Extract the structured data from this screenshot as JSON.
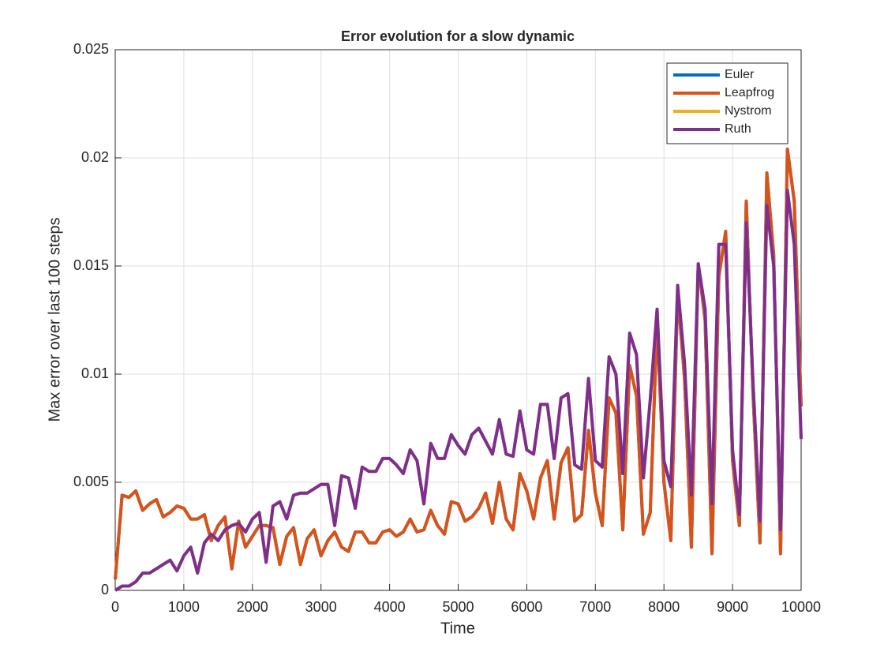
{
  "chart_data": {
    "type": "line",
    "title": "Error evolution for a slow dynamic",
    "xlabel": "Time",
    "ylabel": "Max error over last 100 steps",
    "x": [
      0,
      100,
      200,
      300,
      400,
      500,
      600,
      700,
      800,
      900,
      1000,
      1100,
      1200,
      1300,
      1400,
      1500,
      1600,
      1700,
      1800,
      1900,
      2000,
      2100,
      2200,
      2300,
      2400,
      2500,
      2600,
      2700,
      2800,
      2900,
      3000,
      3100,
      3200,
      3300,
      3400,
      3500,
      3600,
      3700,
      3800,
      3900,
      4000,
      4100,
      4200,
      4300,
      4400,
      4500,
      4600,
      4700,
      4800,
      4900,
      5000,
      5100,
      5200,
      5300,
      5400,
      5500,
      5600,
      5700,
      5800,
      5900,
      6000,
      6100,
      6200,
      6300,
      6400,
      6500,
      6600,
      6700,
      6800,
      6900,
      7000,
      7100,
      7200,
      7300,
      7400,
      7500,
      7600,
      7700,
      7800,
      7900,
      8000,
      8100,
      8200,
      8300,
      8400,
      8500,
      8600,
      8700,
      8800,
      8900,
      9000,
      9100,
      9200,
      9300,
      9400,
      9500,
      9600,
      9700,
      9800,
      9900,
      10000
    ],
    "series": [
      {
        "name": "Euler",
        "color": "#0072BD",
        "values": [
          0.0005,
          0.0044,
          0.0043,
          0.0046,
          0.0037,
          0.004,
          0.0042,
          0.0034,
          0.0036,
          0.0039,
          0.0038,
          0.0033,
          0.0033,
          0.0035,
          0.0023,
          0.003,
          0.0034,
          0.001,
          0.0032,
          0.002,
          0.0025,
          0.003,
          0.003,
          0.0029,
          0.0012,
          0.0025,
          0.0029,
          0.0012,
          0.0024,
          0.0028,
          0.0016,
          0.0023,
          0.0027,
          0.002,
          0.0018,
          0.0027,
          0.0027,
          0.0022,
          0.0022,
          0.0027,
          0.0028,
          0.0025,
          0.0027,
          0.0033,
          0.0027,
          0.0028,
          0.0037,
          0.003,
          0.0026,
          0.0041,
          0.004,
          0.0032,
          0.0034,
          0.0038,
          0.0045,
          0.0031,
          0.005,
          0.0033,
          0.0028,
          0.0054,
          0.0046,
          0.0033,
          0.0052,
          0.006,
          0.0033,
          0.0059,
          0.0066,
          0.0032,
          0.0035,
          0.0074,
          0.0045,
          0.003,
          0.0089,
          0.0082,
          0.0028,
          0.0104,
          0.009,
          0.0026,
          0.0036,
          0.0124,
          0.005,
          0.0023,
          0.0138,
          0.0098,
          0.002,
          0.0151,
          0.0125,
          0.0017,
          0.0145,
          0.0166,
          0.006,
          0.003,
          0.018,
          0.009,
          0.0022,
          0.0193,
          0.0155,
          0.0017,
          0.0204,
          0.018,
          0.0085
        ]
      },
      {
        "name": "Leapfrog",
        "color": "#D95319",
        "values": [
          0.0005,
          0.0044,
          0.0043,
          0.0046,
          0.0037,
          0.004,
          0.0042,
          0.0034,
          0.0036,
          0.0039,
          0.0038,
          0.0033,
          0.0033,
          0.0035,
          0.0023,
          0.003,
          0.0034,
          0.001,
          0.0032,
          0.002,
          0.0025,
          0.003,
          0.003,
          0.0029,
          0.0012,
          0.0025,
          0.0029,
          0.0012,
          0.0024,
          0.0028,
          0.0016,
          0.0023,
          0.0027,
          0.002,
          0.0018,
          0.0027,
          0.0027,
          0.0022,
          0.0022,
          0.0027,
          0.0028,
          0.0025,
          0.0027,
          0.0033,
          0.0027,
          0.0028,
          0.0037,
          0.003,
          0.0026,
          0.0041,
          0.004,
          0.0032,
          0.0034,
          0.0038,
          0.0045,
          0.0031,
          0.005,
          0.0033,
          0.0028,
          0.0054,
          0.0046,
          0.0033,
          0.0052,
          0.006,
          0.0033,
          0.0059,
          0.0066,
          0.0032,
          0.0035,
          0.0074,
          0.0045,
          0.003,
          0.0089,
          0.0082,
          0.0028,
          0.0104,
          0.009,
          0.0026,
          0.0036,
          0.0124,
          0.005,
          0.0023,
          0.0138,
          0.0098,
          0.002,
          0.0151,
          0.0125,
          0.0017,
          0.0145,
          0.0166,
          0.006,
          0.003,
          0.018,
          0.009,
          0.0022,
          0.0193,
          0.0155,
          0.0017,
          0.0204,
          0.018,
          0.0085
        ]
      },
      {
        "name": "Nystrom",
        "color": "#EDB120",
        "values": [
          0,
          0.0002,
          0.0002,
          0.0004,
          0.0008,
          0.0008,
          0.001,
          0.0012,
          0.0014,
          0.0009,
          0.0016,
          0.002,
          0.0008,
          0.0022,
          0.0026,
          0.0023,
          0.0028,
          0.003,
          0.0031,
          0.0027,
          0.0033,
          0.0036,
          0.0013,
          0.0039,
          0.0041,
          0.0033,
          0.0044,
          0.0045,
          0.0045,
          0.0047,
          0.0049,
          0.0049,
          0.003,
          0.0053,
          0.0052,
          0.0038,
          0.0057,
          0.0055,
          0.0055,
          0.0061,
          0.0061,
          0.0058,
          0.0054,
          0.0065,
          0.006,
          0.004,
          0.0068,
          0.0061,
          0.0061,
          0.0072,
          0.0067,
          0.0063,
          0.0072,
          0.0075,
          0.0069,
          0.0063,
          0.0079,
          0.0063,
          0.0062,
          0.0083,
          0.0065,
          0.0063,
          0.0086,
          0.0086,
          0.0061,
          0.0089,
          0.0091,
          0.0058,
          0.0056,
          0.0098,
          0.006,
          0.0057,
          0.0108,
          0.01,
          0.0054,
          0.0119,
          0.0109,
          0.0052,
          0.0088,
          0.013,
          0.006,
          0.0048,
          0.0141,
          0.0105,
          0.0044,
          0.0151,
          0.013,
          0.004,
          0.016,
          0.016,
          0.0065,
          0.0035,
          0.017,
          0.0095,
          0.0032,
          0.0178,
          0.015,
          0.0028,
          0.0185,
          0.016,
          0.007
        ]
      },
      {
        "name": "Ruth",
        "color": "#7E2F8E",
        "values": [
          0,
          0.0002,
          0.0002,
          0.0004,
          0.0008,
          0.0008,
          0.001,
          0.0012,
          0.0014,
          0.0009,
          0.0016,
          0.002,
          0.0008,
          0.0022,
          0.0026,
          0.0023,
          0.0028,
          0.003,
          0.0031,
          0.0027,
          0.0033,
          0.0036,
          0.0013,
          0.0039,
          0.0041,
          0.0033,
          0.0044,
          0.0045,
          0.0045,
          0.0047,
          0.0049,
          0.0049,
          0.003,
          0.0053,
          0.0052,
          0.0038,
          0.0057,
          0.0055,
          0.0055,
          0.0061,
          0.0061,
          0.0058,
          0.0054,
          0.0065,
          0.006,
          0.004,
          0.0068,
          0.0061,
          0.0061,
          0.0072,
          0.0067,
          0.0063,
          0.0072,
          0.0075,
          0.0069,
          0.0063,
          0.0079,
          0.0063,
          0.0062,
          0.0083,
          0.0065,
          0.0063,
          0.0086,
          0.0086,
          0.0061,
          0.0089,
          0.0091,
          0.0058,
          0.0056,
          0.0098,
          0.006,
          0.0057,
          0.0108,
          0.01,
          0.0054,
          0.0119,
          0.0109,
          0.0052,
          0.0088,
          0.013,
          0.006,
          0.0048,
          0.0141,
          0.0105,
          0.0044,
          0.0151,
          0.013,
          0.004,
          0.016,
          0.016,
          0.0065,
          0.0035,
          0.017,
          0.0095,
          0.0032,
          0.0178,
          0.015,
          0.0028,
          0.0185,
          0.016,
          0.007
        ]
      }
    ],
    "xlim": [
      0,
      10000
    ],
    "xticks": [
      0,
      1000,
      2000,
      3000,
      4000,
      5000,
      6000,
      7000,
      8000,
      9000,
      10000
    ],
    "ylim": [
      0,
      0.025
    ],
    "yticks": [
      0,
      0.005,
      0.01,
      0.015,
      0.02,
      0.025
    ],
    "grid": true,
    "legend": "northeast"
  }
}
